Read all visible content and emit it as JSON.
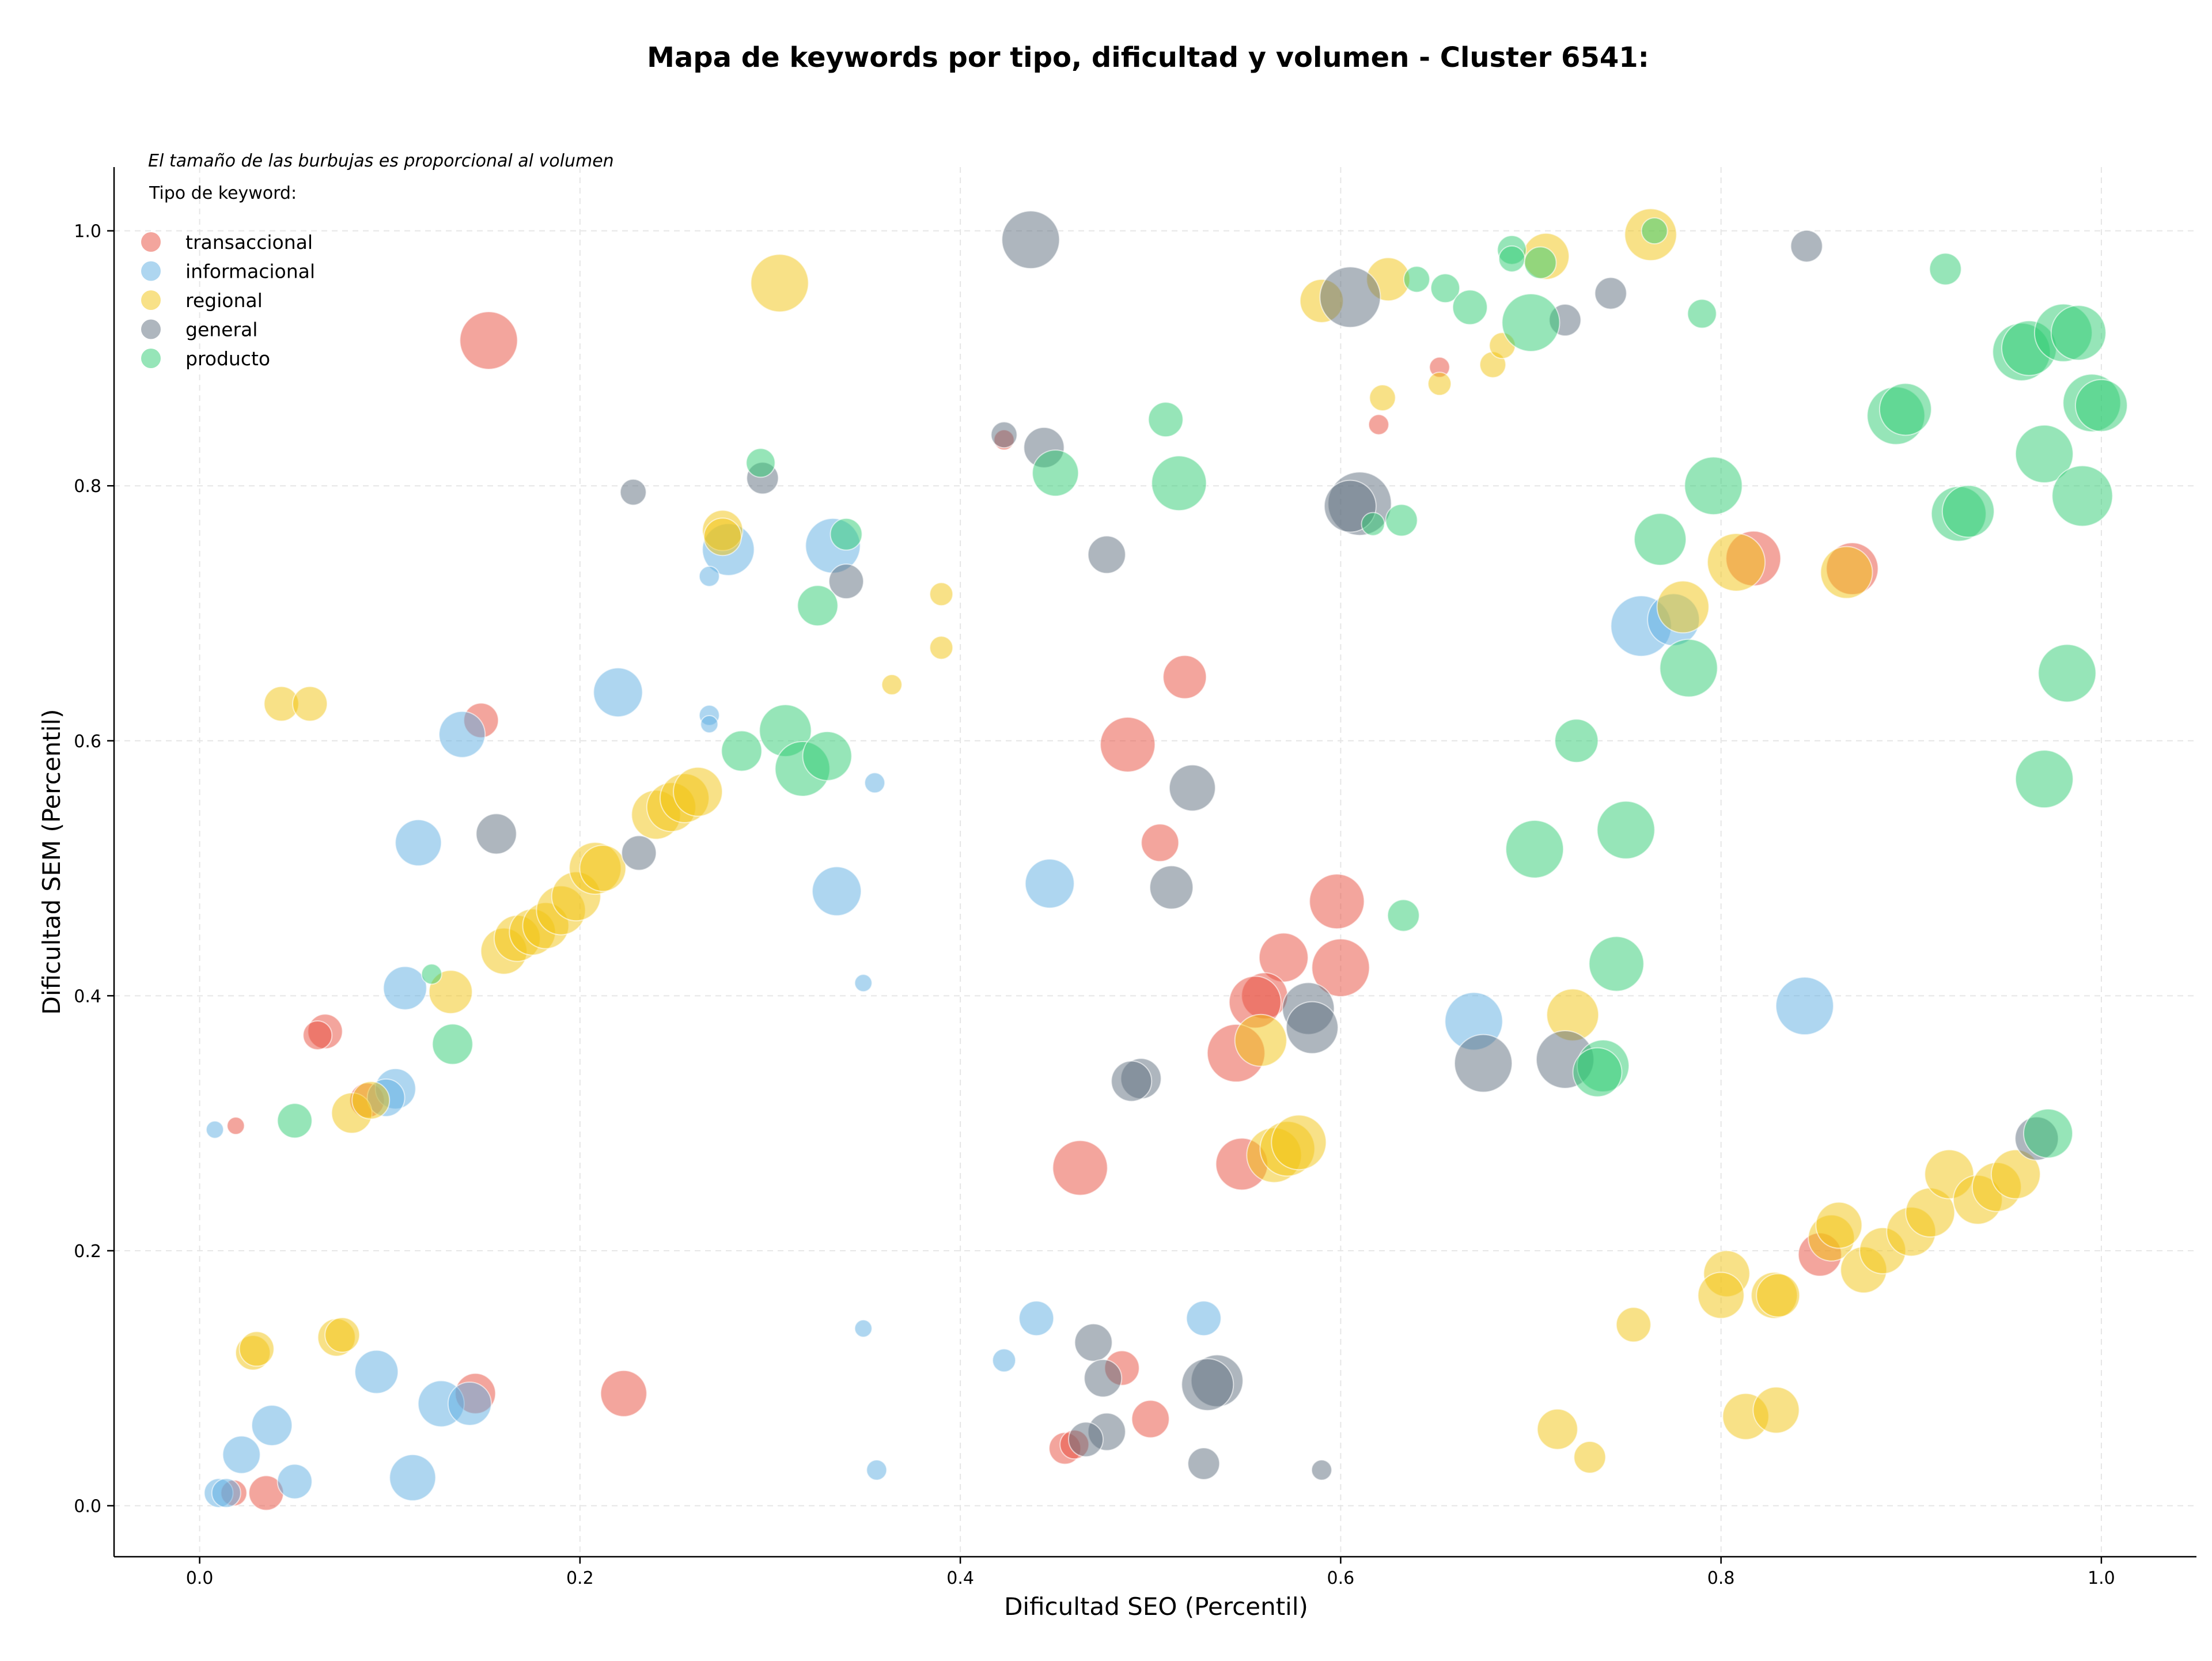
{
  "chart_data": {
    "type": "scatter",
    "title": "Mapa de keywords por tipo, dificultad y volumen - Cluster 6541:",
    "xlabel": "Dificultad SEO (Percentil)",
    "ylabel": "Dificultad SEM (Percentil)",
    "xlim": [
      -0.045,
      1.05
    ],
    "ylim": [
      -0.04,
      1.05
    ],
    "xticks": [
      "0.0",
      "0.2",
      "0.4",
      "0.6",
      "0.8",
      "1.0"
    ],
    "yticks": [
      "0.0",
      "0.2",
      "0.4",
      "0.6",
      "0.8",
      "1.0"
    ],
    "grid": true,
    "legend_position": "top-left",
    "note": "El tamaño de las burbujas es proporcional al volumen",
    "legend_title": "Tipo de keyword:",
    "series": [
      {
        "name": "transaccional",
        "color": "#e74c3c",
        "points": [
          [
            0.152,
            0.914,
            2.0
          ],
          [
            0.148,
            0.616,
            1.2
          ],
          [
            0.066,
            0.372,
            1.2
          ],
          [
            0.062,
            0.369,
            1.0
          ],
          [
            0.088,
            0.318,
            1.2
          ],
          [
            0.019,
            0.298,
            0.6
          ],
          [
            0.145,
            0.088,
            1.4
          ],
          [
            0.223,
            0.088,
            1.6
          ],
          [
            0.035,
            0.01,
            1.2
          ],
          [
            0.018,
            0.01,
            0.9
          ],
          [
            0.518,
            0.65,
            1.5
          ],
          [
            0.488,
            0.597,
            1.9
          ],
          [
            0.505,
            0.52,
            1.3
          ],
          [
            0.598,
            0.474,
            1.9
          ],
          [
            0.6,
            0.422,
            2.0
          ],
          [
            0.57,
            0.43,
            1.7
          ],
          [
            0.56,
            0.4,
            1.6
          ],
          [
            0.555,
            0.395,
            1.8
          ],
          [
            0.545,
            0.355,
            2.0
          ],
          [
            0.548,
            0.268,
            1.8
          ],
          [
            0.463,
            0.265,
            1.9
          ],
          [
            0.485,
            0.108,
            1.2
          ],
          [
            0.5,
            0.068,
            1.3
          ],
          [
            0.455,
            0.045,
            1.1
          ],
          [
            0.46,
            0.048,
            1.0
          ],
          [
            0.423,
            0.836,
            0.7
          ],
          [
            0.62,
            0.848,
            0.7
          ],
          [
            0.652,
            0.893,
            0.7
          ],
          [
            0.817,
            0.743,
            1.9
          ],
          [
            0.869,
            0.735,
            1.8
          ],
          [
            0.852,
            0.197,
            1.5
          ]
        ]
      },
      {
        "name": "informacional",
        "color": "#5dade2",
        "points": [
          [
            0.22,
            0.638,
            1.7
          ],
          [
            0.138,
            0.605,
            1.6
          ],
          [
            0.115,
            0.52,
            1.6
          ],
          [
            0.108,
            0.406,
            1.5
          ],
          [
            0.103,
            0.327,
            1.4
          ],
          [
            0.098,
            0.32,
            1.3
          ],
          [
            0.008,
            0.295,
            0.6
          ],
          [
            0.093,
            0.105,
            1.5
          ],
          [
            0.127,
            0.08,
            1.6
          ],
          [
            0.142,
            0.08,
            1.5
          ],
          [
            0.038,
            0.063,
            1.4
          ],
          [
            0.022,
            0.04,
            1.3
          ],
          [
            0.05,
            0.019,
            1.2
          ],
          [
            0.112,
            0.022,
            1.6
          ],
          [
            0.01,
            0.01,
            1.0
          ],
          [
            0.014,
            0.01,
            1.0
          ],
          [
            0.278,
            0.75,
            1.8
          ],
          [
            0.333,
            0.753,
            1.9
          ],
          [
            0.268,
            0.729,
            0.7
          ],
          [
            0.268,
            0.62,
            0.7
          ],
          [
            0.268,
            0.613,
            0.6
          ],
          [
            0.335,
            0.482,
            1.7
          ],
          [
            0.355,
            0.567,
            0.7
          ],
          [
            0.349,
            0.41,
            0.6
          ],
          [
            0.447,
            0.488,
            1.7
          ],
          [
            0.349,
            0.139,
            0.6
          ],
          [
            0.44,
            0.147,
            1.2
          ],
          [
            0.423,
            0.114,
            0.8
          ],
          [
            0.528,
            0.147,
            1.2
          ],
          [
            0.356,
            0.028,
            0.7
          ],
          [
            0.67,
            0.38,
            2.0
          ],
          [
            0.758,
            0.69,
            2.1
          ],
          [
            0.775,
            0.695,
            1.8
          ],
          [
            0.844,
            0.392,
            2.0
          ]
        ]
      },
      {
        "name": "regional",
        "color": "#f1c40f",
        "points": [
          [
            0.305,
            0.959,
            2.0
          ],
          [
            0.043,
            0.629,
            1.2
          ],
          [
            0.058,
            0.629,
            1.2
          ],
          [
            0.275,
            0.765,
            1.4
          ],
          [
            0.275,
            0.76,
            1.3
          ],
          [
            0.132,
            0.403,
            1.5
          ],
          [
            0.08,
            0.308,
            1.4
          ],
          [
            0.09,
            0.318,
            1.3
          ],
          [
            0.028,
            0.12,
            1.2
          ],
          [
            0.03,
            0.123,
            1.2
          ],
          [
            0.072,
            0.132,
            1.3
          ],
          [
            0.075,
            0.134,
            1.2
          ],
          [
            0.16,
            0.435,
            1.6
          ],
          [
            0.167,
            0.445,
            1.6
          ],
          [
            0.175,
            0.45,
            1.6
          ],
          [
            0.182,
            0.455,
            1.6
          ],
          [
            0.19,
            0.467,
            1.7
          ],
          [
            0.198,
            0.478,
            1.7
          ],
          [
            0.208,
            0.5,
            1.8
          ],
          [
            0.212,
            0.5,
            1.6
          ],
          [
            0.24,
            0.542,
            1.7
          ],
          [
            0.248,
            0.548,
            1.7
          ],
          [
            0.255,
            0.555,
            1.7
          ],
          [
            0.262,
            0.56,
            1.7
          ],
          [
            0.364,
            0.644,
            0.7
          ],
          [
            0.39,
            0.715,
            0.8
          ],
          [
            0.39,
            0.673,
            0.8
          ],
          [
            0.565,
            0.275,
            1.9
          ],
          [
            0.572,
            0.28,
            1.9
          ],
          [
            0.578,
            0.285,
            1.9
          ],
          [
            0.558,
            0.365,
            1.8
          ],
          [
            0.59,
            0.945,
            1.5
          ],
          [
            0.625,
            0.962,
            1.5
          ],
          [
            0.622,
            0.869,
            0.9
          ],
          [
            0.652,
            0.88,
            0.8
          ],
          [
            0.68,
            0.895,
            0.9
          ],
          [
            0.685,
            0.91,
            0.9
          ],
          [
            0.708,
            0.98,
            1.6
          ],
          [
            0.763,
            0.997,
            1.8
          ],
          [
            0.722,
            0.385,
            1.8
          ],
          [
            0.754,
            0.142,
            1.2
          ],
          [
            0.714,
            0.06,
            1.4
          ],
          [
            0.731,
            0.038,
            1.1
          ],
          [
            0.808,
            0.74,
            2.0
          ],
          [
            0.78,
            0.705,
            1.8
          ],
          [
            0.866,
            0.732,
            1.8
          ],
          [
            0.803,
            0.182,
            1.6
          ],
          [
            0.8,
            0.165,
            1.6
          ],
          [
            0.813,
            0.07,
            1.6
          ],
          [
            0.829,
            0.075,
            1.6
          ],
          [
            0.828,
            0.165,
            1.6
          ],
          [
            0.83,
            0.165,
            1.5
          ],
          [
            0.858,
            0.21,
            1.6
          ],
          [
            0.862,
            0.22,
            1.6
          ],
          [
            0.875,
            0.185,
            1.6
          ],
          [
            0.885,
            0.2,
            1.6
          ],
          [
            0.9,
            0.215,
            1.7
          ],
          [
            0.91,
            0.23,
            1.7
          ],
          [
            0.92,
            0.26,
            1.7
          ],
          [
            0.935,
            0.24,
            1.7
          ],
          [
            0.945,
            0.25,
            1.7
          ],
          [
            0.955,
            0.26,
            1.7
          ]
        ]
      },
      {
        "name": "general",
        "color": "#5d6d7e",
        "points": [
          [
            0.437,
            0.993,
            2.0
          ],
          [
            0.228,
            0.795,
            0.9
          ],
          [
            0.296,
            0.806,
            1.1
          ],
          [
            0.34,
            0.725,
            1.2
          ],
          [
            0.156,
            0.527,
            1.4
          ],
          [
            0.231,
            0.512,
            1.2
          ],
          [
            0.423,
            0.84,
            0.9
          ],
          [
            0.444,
            0.83,
            1.4
          ],
          [
            0.477,
            0.746,
            1.3
          ],
          [
            0.522,
            0.563,
            1.6
          ],
          [
            0.511,
            0.485,
            1.5
          ],
          [
            0.495,
            0.335,
            1.4
          ],
          [
            0.49,
            0.333,
            1.4
          ],
          [
            0.583,
            0.39,
            1.8
          ],
          [
            0.585,
            0.375,
            1.8
          ],
          [
            0.675,
            0.347,
            2.0
          ],
          [
            0.718,
            0.35,
            2.0
          ],
          [
            0.47,
            0.128,
            1.3
          ],
          [
            0.475,
            0.1,
            1.3
          ],
          [
            0.477,
            0.058,
            1.3
          ],
          [
            0.466,
            0.052,
            1.2
          ],
          [
            0.535,
            0.098,
            1.8
          ],
          [
            0.53,
            0.095,
            1.8
          ],
          [
            0.528,
            0.033,
            1.1
          ],
          [
            0.59,
            0.028,
            0.7
          ],
          [
            0.605,
            0.948,
            2.1
          ],
          [
            0.61,
            0.786,
            2.2
          ],
          [
            0.605,
            0.784,
            1.8
          ],
          [
            0.718,
            0.93,
            1.1
          ],
          [
            0.742,
            0.951,
            1.1
          ],
          [
            0.845,
            0.988,
            1.1
          ],
          [
            0.966,
            0.288,
            1.5
          ]
        ]
      },
      {
        "name": "producto",
        "color": "#2ecc71",
        "points": [
          [
            0.295,
            0.818,
            1.0
          ],
          [
            0.34,
            0.762,
            1.1
          ],
          [
            0.325,
            0.706,
            1.4
          ],
          [
            0.285,
            0.592,
            1.4
          ],
          [
            0.308,
            0.608,
            1.8
          ],
          [
            0.317,
            0.578,
            1.9
          ],
          [
            0.33,
            0.588,
            1.7
          ],
          [
            0.122,
            0.417,
            0.7
          ],
          [
            0.133,
            0.362,
            1.4
          ],
          [
            0.05,
            0.302,
            1.2
          ],
          [
            0.45,
            0.81,
            1.6
          ],
          [
            0.508,
            0.852,
            1.2
          ],
          [
            0.515,
            0.802,
            1.9
          ],
          [
            0.617,
            0.77,
            0.8
          ],
          [
            0.632,
            0.773,
            1.1
          ],
          [
            0.633,
            0.463,
            1.1
          ],
          [
            0.64,
            0.962,
            0.9
          ],
          [
            0.655,
            0.955,
            1.0
          ],
          [
            0.668,
            0.94,
            1.2
          ],
          [
            0.69,
            0.985,
            1.0
          ],
          [
            0.69,
            0.978,
            0.9
          ],
          [
            0.7,
            0.928,
            2.0
          ],
          [
            0.705,
            0.975,
            1.1
          ],
          [
            0.765,
            1.0,
            0.9
          ],
          [
            0.79,
            0.935,
            1.0
          ],
          [
            0.768,
            0.758,
            1.8
          ],
          [
            0.796,
            0.8,
            2.0
          ],
          [
            0.783,
            0.657,
            2.0
          ],
          [
            0.724,
            0.6,
            1.5
          ],
          [
            0.702,
            0.515,
            2.0
          ],
          [
            0.75,
            0.53,
            2.0
          ],
          [
            0.745,
            0.425,
            1.9
          ],
          [
            0.738,
            0.345,
            1.8
          ],
          [
            0.735,
            0.34,
            1.7
          ],
          [
            0.918,
            0.97,
            1.1
          ],
          [
            0.958,
            0.905,
            2.0
          ],
          [
            0.962,
            0.908,
            1.9
          ],
          [
            0.98,
            0.92,
            2.0
          ],
          [
            0.988,
            0.92,
            1.9
          ],
          [
            0.995,
            0.865,
            2.0
          ],
          [
            1.0,
            0.863,
            1.8
          ],
          [
            0.97,
            0.825,
            2.0
          ],
          [
            0.892,
            0.855,
            2.0
          ],
          [
            0.897,
            0.86,
            1.8
          ],
          [
            0.925,
            0.778,
            1.9
          ],
          [
            0.93,
            0.78,
            1.8
          ],
          [
            0.99,
            0.792,
            2.1
          ],
          [
            0.982,
            0.653,
            2.0
          ],
          [
            0.97,
            0.57,
            2.0
          ],
          [
            0.972,
            0.292,
            1.7
          ]
        ]
      }
    ]
  }
}
